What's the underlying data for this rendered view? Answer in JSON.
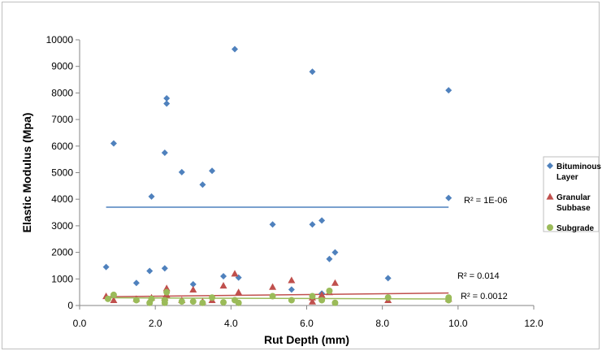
{
  "chart_data": {
    "type": "scatter",
    "title": "",
    "xlabel": "Rut Depth (mm)",
    "ylabel": "Elastic Modulus (Mpa)",
    "xlim": [
      0,
      12
    ],
    "ylim": [
      0,
      10000
    ],
    "x_ticks": [
      "0.0",
      "2.0",
      "4.0",
      "6.0",
      "8.0",
      "10.0",
      "12.0"
    ],
    "y_ticks": [
      "0",
      "1000",
      "2000",
      "3000",
      "4000",
      "5000",
      "6000",
      "7000",
      "8000",
      "9000",
      "10000"
    ],
    "grid": false,
    "legend_position": "right",
    "series": [
      {
        "name": "Bituminous Layer",
        "legend_lines": [
          "Bituminous",
          "Layer"
        ],
        "color": "#4f81bd",
        "marker": "diamond",
        "points": [
          [
            0.7,
            1450
          ],
          [
            0.9,
            6100
          ],
          [
            1.5,
            850
          ],
          [
            1.85,
            1300
          ],
          [
            1.9,
            4100
          ],
          [
            2.25,
            5750
          ],
          [
            2.25,
            1400
          ],
          [
            2.3,
            7600
          ],
          [
            2.3,
            7800
          ],
          [
            2.7,
            5020
          ],
          [
            3.0,
            800
          ],
          [
            3.25,
            4550
          ],
          [
            3.5,
            5070
          ],
          [
            3.8,
            1100
          ],
          [
            4.1,
            9650
          ],
          [
            4.2,
            1050
          ],
          [
            5.1,
            3050
          ],
          [
            5.6,
            600
          ],
          [
            6.15,
            8800
          ],
          [
            6.15,
            3050
          ],
          [
            6.4,
            3200
          ],
          [
            6.4,
            450
          ],
          [
            6.6,
            1750
          ],
          [
            6.75,
            2000
          ],
          [
            8.15,
            1030
          ],
          [
            9.75,
            8100
          ],
          [
            9.75,
            4050
          ]
        ],
        "trendline": {
          "x": [
            0.7,
            9.75
          ],
          "y": [
            3700,
            3700
          ],
          "color": "#4f81bd",
          "r2_label": "R² = 1E-06"
        }
      },
      {
        "name": "Granular Subbase",
        "legend_lines": [
          "Granular",
          "Subbase"
        ],
        "color": "#c0504d",
        "marker": "triangle",
        "points": [
          [
            0.7,
            350
          ],
          [
            0.9,
            200
          ],
          [
            1.5,
            250
          ],
          [
            1.9,
            300
          ],
          [
            2.25,
            300
          ],
          [
            2.3,
            650
          ],
          [
            2.3,
            400
          ],
          [
            2.7,
            200
          ],
          [
            3.0,
            600
          ],
          [
            3.25,
            150
          ],
          [
            3.5,
            200
          ],
          [
            3.8,
            750
          ],
          [
            4.1,
            1200
          ],
          [
            4.2,
            500
          ],
          [
            5.1,
            700
          ],
          [
            5.6,
            950
          ],
          [
            6.15,
            150
          ],
          [
            6.15,
            300
          ],
          [
            6.4,
            400
          ],
          [
            6.6,
            500
          ],
          [
            6.75,
            850
          ],
          [
            8.15,
            200
          ],
          [
            9.75,
            250
          ]
        ],
        "trendline": {
          "x": [
            0.7,
            9.75
          ],
          "y": [
            330,
            470
          ],
          "color": "#c0504d",
          "r2_label": "R² = 0.014"
        }
      },
      {
        "name": "Subgrade",
        "legend_lines": [
          "Subgrade"
        ],
        "color": "#9bbb59",
        "marker": "circle",
        "points": [
          [
            0.75,
            250
          ],
          [
            0.9,
            400
          ],
          [
            1.5,
            200
          ],
          [
            1.85,
            100
          ],
          [
            1.9,
            250
          ],
          [
            2.25,
            100
          ],
          [
            2.25,
            200
          ],
          [
            2.3,
            500
          ],
          [
            2.7,
            150
          ],
          [
            3.0,
            150
          ],
          [
            3.25,
            100
          ],
          [
            3.5,
            300
          ],
          [
            3.8,
            120
          ],
          [
            4.1,
            200
          ],
          [
            4.2,
            100
          ],
          [
            5.1,
            350
          ],
          [
            5.6,
            200
          ],
          [
            6.15,
            350
          ],
          [
            6.4,
            200
          ],
          [
            6.6,
            550
          ],
          [
            6.75,
            100
          ],
          [
            8.15,
            300
          ],
          [
            9.75,
            300
          ],
          [
            9.75,
            200
          ]
        ],
        "trendline": {
          "x": [
            0.7,
            9.75
          ],
          "y": [
            290,
            245
          ],
          "color": "#9bbb59",
          "r2_label": "R² = 0.0012"
        }
      }
    ]
  }
}
